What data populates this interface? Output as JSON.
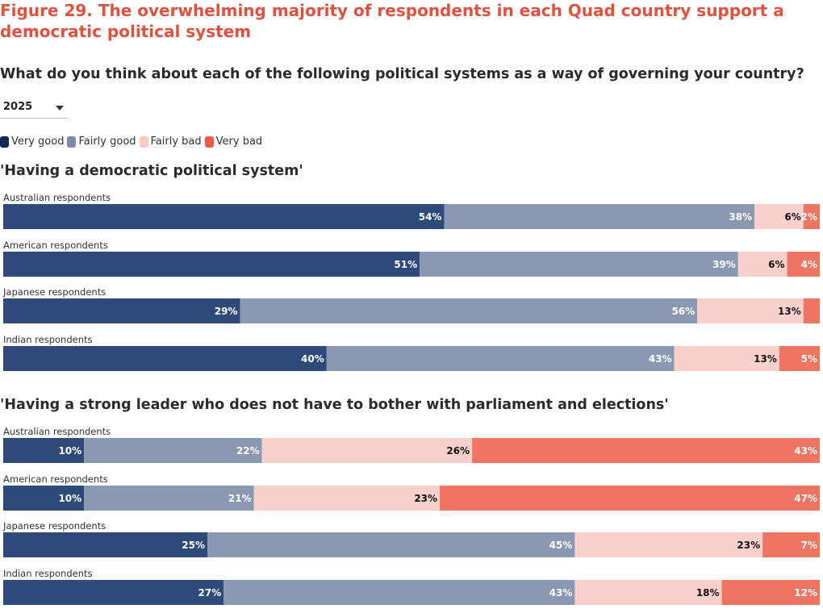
{
  "figure_title": "Figure 29. The overwhelming majority of respondents in each Quad country support a democratic political system",
  "question": "What do you think about each of the following political systems as a way of governing your country?",
  "year_selector": {
    "selected": "2025",
    "icon": "chevron-down-icon"
  },
  "colors": {
    "very_good": "#2e4a7b",
    "fairly_good": "#8a98b1",
    "fairly_bad": "#f9d0cb",
    "very_bad": "#f07462",
    "title": "#e1513f"
  },
  "legend": [
    {
      "label": "Very good",
      "color": "#12285a"
    },
    {
      "label": "Fairly good",
      "color": "#7b8aa8"
    },
    {
      "label": "Fairly bad",
      "color": "#f9c9c3"
    },
    {
      "label": "Very bad",
      "color": "#ee5c48"
    }
  ],
  "chart_data": [
    {
      "type": "bar",
      "orientation": "horizontal",
      "stacked": true,
      "title": "'Having a democratic political system'",
      "categories": [
        "Australian respondents",
        "American respondents",
        "Japanese respondents",
        "Indian respondents"
      ],
      "series": [
        {
          "name": "Very good",
          "values": [
            54,
            51,
            29,
            40
          ],
          "labels": [
            "54%",
            "51%",
            "29%",
            "40%"
          ]
        },
        {
          "name": "Fairly good",
          "values": [
            38,
            39,
            56,
            43
          ],
          "labels": [
            "38%",
            "39%",
            "56%",
            "43%"
          ]
        },
        {
          "name": "Fairly bad",
          "values": [
            6,
            6,
            13,
            13
          ],
          "labels": [
            "6%",
            "6%",
            "13%",
            "13%"
          ]
        },
        {
          "name": "Very bad",
          "values": [
            2,
            4,
            2,
            5
          ],
          "labels": [
            "2%",
            "4%",
            "",
            "5%"
          ]
        }
      ],
      "xlim": [
        0,
        100
      ]
    },
    {
      "type": "bar",
      "orientation": "horizontal",
      "stacked": true,
      "title": "'Having a strong leader who does not have to bother with parliament and elections'",
      "categories": [
        "Australian respondents",
        "American respondents",
        "Japanese respondents",
        "Indian respondents"
      ],
      "series": [
        {
          "name": "Very good",
          "values": [
            10,
            10,
            25,
            27
          ],
          "labels": [
            "10%",
            "10%",
            "25%",
            "27%"
          ]
        },
        {
          "name": "Fairly good",
          "values": [
            22,
            21,
            45,
            43
          ],
          "labels": [
            "22%",
            "21%",
            "45%",
            "43%"
          ]
        },
        {
          "name": "Fairly bad",
          "values": [
            26,
            23,
            23,
            18
          ],
          "labels": [
            "26%",
            "23%",
            "23%",
            "18%"
          ]
        },
        {
          "name": "Very bad",
          "values": [
            43,
            47,
            7,
            12
          ],
          "labels": [
            "43%",
            "47%",
            "7%",
            "12%"
          ]
        }
      ],
      "xlim": [
        0,
        100
      ]
    }
  ]
}
